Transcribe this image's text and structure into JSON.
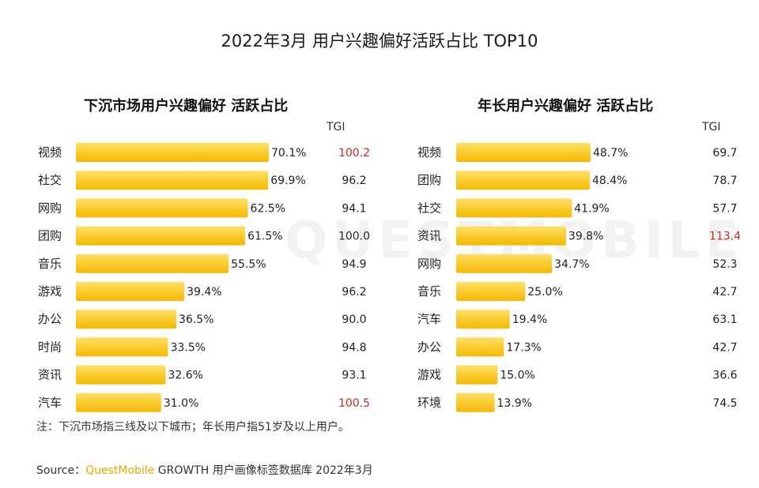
{
  "title": "2022年3月 用户兴趣偏好活跃占比 TOP10",
  "tgi_label": "TGI",
  "watermark": "QUESTMOBILE",
  "note": "注：下沉市场指三线及以下城市；年长用户指51岁及以上用户。",
  "source": {
    "prefix": "Source：",
    "brand": "QuestMobile",
    "rest": " GROWTH 用户画像标签数据库 2022年3月"
  },
  "colors": {
    "bar_light": "#ffe066",
    "bar_dark": "#f5b800",
    "highlight": "#c62828"
  },
  "chart_data": [
    {
      "type": "bar",
      "orientation": "horizontal",
      "title": "下沉市场用户兴趣偏好 活跃占比",
      "categories": [
        "视频",
        "社交",
        "网购",
        "团购",
        "音乐",
        "游戏",
        "办公",
        "时尚",
        "资讯",
        "汽车"
      ],
      "values": [
        70.1,
        69.9,
        62.5,
        61.5,
        55.5,
        39.4,
        36.5,
        33.5,
        32.6,
        31.0
      ],
      "value_labels": [
        "70.1%",
        "69.9%",
        "62.5%",
        "61.5%",
        "55.5%",
        "39.4%",
        "36.5%",
        "33.5%",
        "32.6%",
        "31.0%"
      ],
      "tgi": [
        "100.2",
        "96.2",
        "94.1",
        "100.0",
        "94.9",
        "96.2",
        "90.0",
        "94.8",
        "93.1",
        "100.5"
      ],
      "tgi_highlight": [
        true,
        false,
        false,
        false,
        false,
        false,
        false,
        false,
        false,
        true
      ]
    },
    {
      "type": "bar",
      "orientation": "horizontal",
      "title": "年长用户兴趣偏好 活跃占比",
      "categories": [
        "视频",
        "团购",
        "社交",
        "资讯",
        "网购",
        "音乐",
        "汽车",
        "办公",
        "游戏",
        "环境"
      ],
      "values": [
        48.7,
        48.4,
        41.9,
        39.8,
        34.7,
        25.0,
        19.4,
        17.3,
        15.0,
        13.9
      ],
      "value_labels": [
        "48.7%",
        "48.4%",
        "41.9%",
        "39.8%",
        "34.7%",
        "25.0%",
        "19.4%",
        "17.3%",
        "15.0%",
        "13.9%"
      ],
      "tgi": [
        "69.7",
        "78.7",
        "57.7",
        "113.4",
        "52.3",
        "42.7",
        "63.1",
        "42.7",
        "36.6",
        "74.5"
      ],
      "tgi_highlight": [
        false,
        false,
        false,
        true,
        false,
        false,
        false,
        false,
        false,
        false
      ]
    }
  ]
}
